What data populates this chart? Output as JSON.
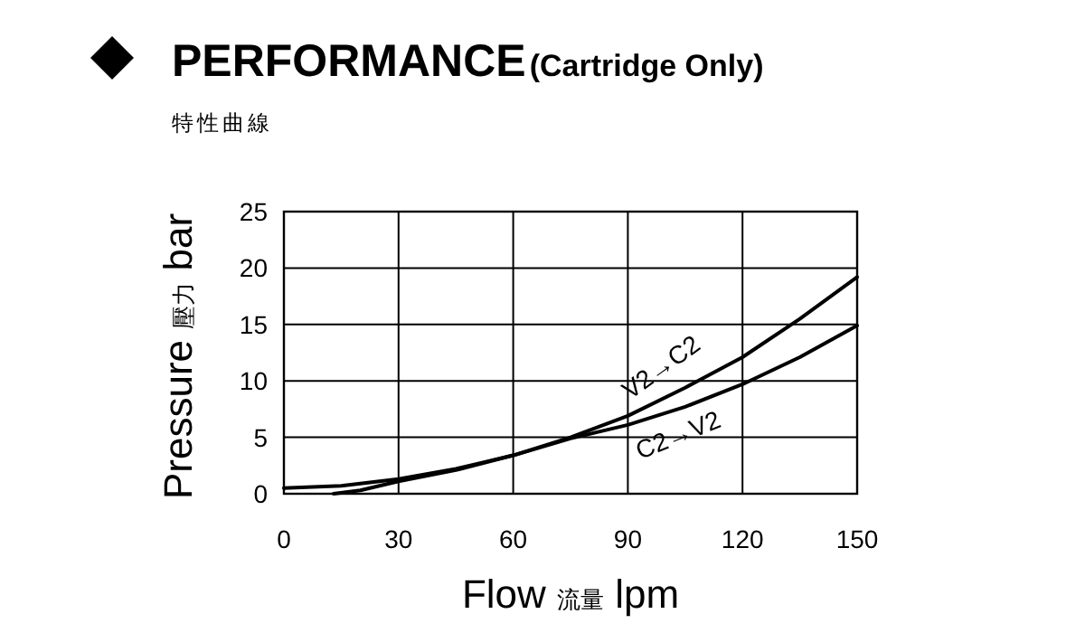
{
  "chart_data": {
    "type": "line",
    "title": "PERFORMANCE",
    "subtitle": "(Cartridge Only)",
    "annotations": [
      "特性曲線"
    ],
    "xlabel": "Flow 流量 lpm",
    "ylabel": "Pressure 壓力 bar",
    "xlim": [
      0,
      150
    ],
    "ylim": [
      0,
      25
    ],
    "xticks": [
      0,
      30,
      60,
      90,
      120,
      150
    ],
    "yticks": [
      0,
      5,
      10,
      15,
      20,
      25
    ],
    "grid": true,
    "series": [
      {
        "name": "V2→C2",
        "color": "#000000",
        "x": [
          13,
          20,
          30,
          45,
          60,
          75,
          90,
          105,
          120,
          135,
          150
        ],
        "values": [
          0,
          0.3,
          1.1,
          2.1,
          3.4,
          5.0,
          6.9,
          9.4,
          12.1,
          15.5,
          19.2
        ]
      },
      {
        "name": "C2→V2",
        "color": "#000000",
        "x": [
          0,
          15,
          30,
          45,
          60,
          75,
          90,
          105,
          120,
          135,
          150
        ],
        "values": [
          0.5,
          0.7,
          1.3,
          2.2,
          3.4,
          4.9,
          6.1,
          7.7,
          9.7,
          12.1,
          14.9
        ]
      }
    ]
  }
}
